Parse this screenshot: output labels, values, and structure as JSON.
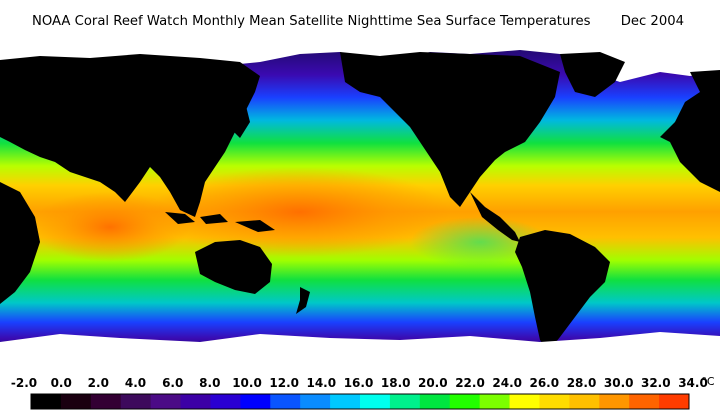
{
  "header": {
    "title": "NOAA Coral Reef Watch Monthly Mean Satellite Nighttime Sea Surface Temperatures",
    "date": "Dec 2004"
  },
  "legend": {
    "labels": [
      "-2.0",
      "0.0",
      "2.0",
      "4.0",
      "6.0",
      "8.0",
      "10.0",
      "12.0",
      "14.0",
      "16.0",
      "18.0",
      "20.0",
      "22.0",
      "24.0",
      "26.0",
      "28.0",
      "30.0",
      "32.0",
      "34.0"
    ],
    "unit": "°C",
    "colors": [
      "#000000",
      "#1a0010",
      "#330033",
      "#3d0a5c",
      "#4b0b86",
      "#3c00a6",
      "#2a00d2",
      "#0000ff",
      "#0a55ff",
      "#0a8cff",
      "#00c8ff",
      "#00ffee",
      "#00f08c",
      "#00e640",
      "#22ff00",
      "#7cff00",
      "#ffff00",
      "#ffdc00",
      "#ffc000",
      "#ff9600",
      "#ff6400",
      "#ff3c00"
    ]
  },
  "colors": {
    "land": "#000000",
    "ice": "#ffffff",
    "cold_polar": "#2a0a80",
    "cool": "#1a30ff",
    "mild": "#00c8c8",
    "temperate": "#10e040",
    "subtropical": "#ccff00",
    "tropical": "#ffc000",
    "warm_pool": "#ff7a00"
  }
}
